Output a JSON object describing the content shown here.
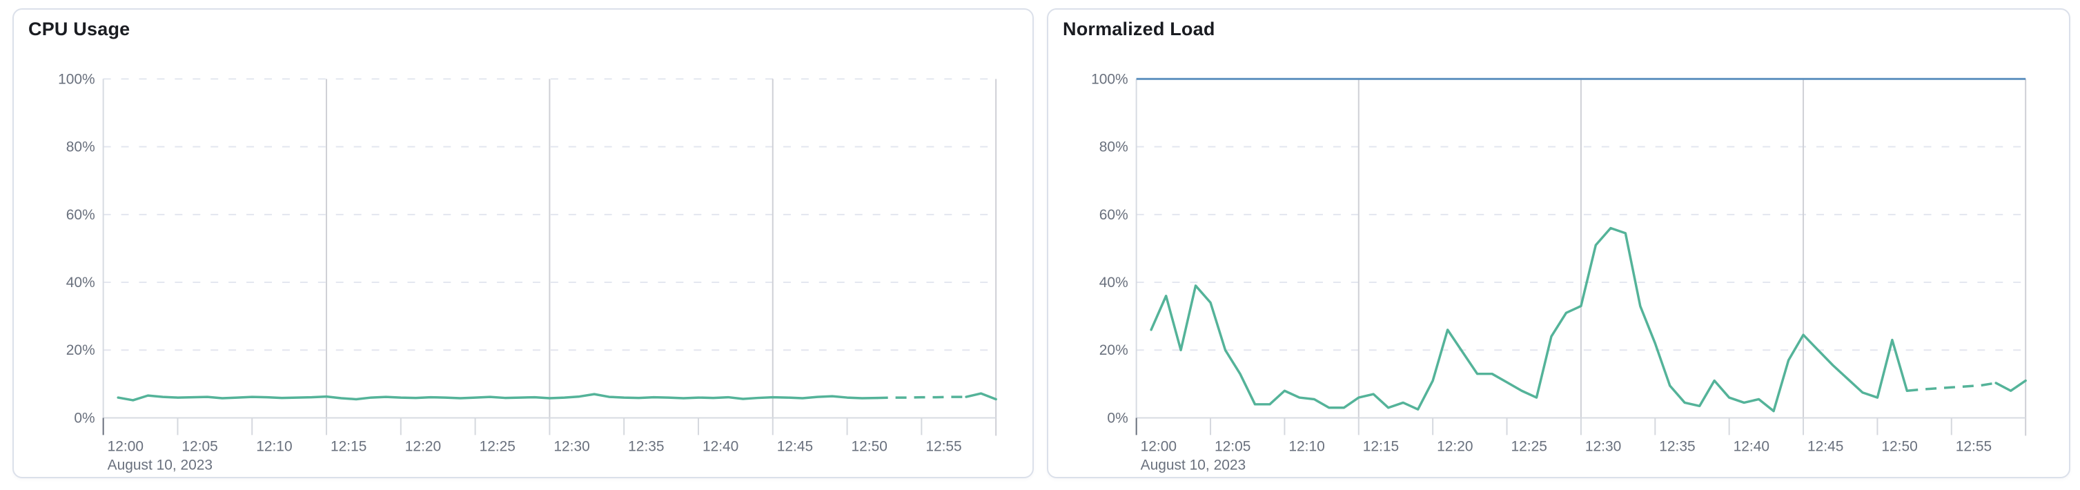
{
  "palette": {
    "series_green": "#54B399",
    "series_blue": "#6092C0",
    "h_grid_dashed": "#E3E6EF",
    "v_grid_solid": "#CFD0D6",
    "axis_line": "#D7DBE2",
    "minor_tick": "#D5D8DE",
    "origin_tick": "#69707D",
    "tick_text": "#69707D",
    "title_text": "#1A1C21",
    "card_border": "#DBE0EA"
  },
  "chart_data": [
    {
      "type": "line",
      "title": "CPU Usage",
      "date_label": "August 10, 2023",
      "x_unit": "time (minutes after 12:00)",
      "x_range": [
        0,
        60
      ],
      "ylim": [
        0,
        100
      ],
      "y_tick_labels": [
        "0%",
        "20%",
        "40%",
        "60%",
        "80%",
        "100%"
      ],
      "y_tick_values": [
        0,
        20,
        40,
        60,
        80,
        100
      ],
      "x_tick_labels": [
        "12:00",
        "12:05",
        "12:10",
        "12:15",
        "12:20",
        "12:25",
        "12:30",
        "12:35",
        "12:40",
        "12:45",
        "12:50",
        "12:55"
      ],
      "x_tick_minutes": [
        0,
        5,
        10,
        15,
        20,
        25,
        30,
        35,
        40,
        45,
        50,
        55
      ],
      "vertical_gridline_minutes": [
        15,
        30,
        45,
        60
      ],
      "grid": "horizontal-dashed, vertical-solid-15min",
      "legend": "none",
      "series": [
        {
          "name": "cpu-usage-percent",
          "color": "#54B399",
          "style": "solid with dashed projection segment",
          "dashed_segment_minutes": [
            52,
            58
          ],
          "x_minutes_start": 1,
          "values": [
            6.0,
            5.2,
            6.6,
            6.2,
            6.0,
            6.1,
            6.2,
            5.8,
            6.0,
            6.2,
            6.1,
            5.9,
            6.0,
            6.1,
            6.3,
            5.8,
            5.5,
            6.0,
            6.2,
            6.0,
            5.9,
            6.1,
            6.0,
            5.8,
            6.0,
            6.2,
            5.9,
            6.0,
            6.1,
            5.8,
            6.0,
            6.3,
            7.0,
            6.2,
            6.0,
            5.9,
            6.1,
            6.0,
            5.8,
            6.0,
            5.9,
            6.1,
            5.6,
            5.9,
            6.1,
            6.0,
            5.8,
            6.2,
            6.4,
            6.0,
            5.8,
            5.9,
            6.0,
            6.0,
            6.1,
            6.1,
            6.2,
            6.2,
            7.2,
            5.5
          ]
        }
      ]
    },
    {
      "type": "line",
      "title": "Normalized Load",
      "date_label": "August 10, 2023",
      "x_unit": "time (minutes after 12:00)",
      "x_range": [
        0,
        60
      ],
      "ylim": [
        0,
        100
      ],
      "y_tick_labels": [
        "0%",
        "20%",
        "40%",
        "60%",
        "80%",
        "100%"
      ],
      "y_tick_values": [
        0,
        20,
        40,
        60,
        80,
        100
      ],
      "x_tick_labels": [
        "12:00",
        "12:05",
        "12:10",
        "12:15",
        "12:20",
        "12:25",
        "12:30",
        "12:35",
        "12:40",
        "12:45",
        "12:50",
        "12:55"
      ],
      "x_tick_minutes": [
        0,
        5,
        10,
        15,
        20,
        25,
        30,
        35,
        40,
        45,
        50,
        55
      ],
      "vertical_gridline_minutes": [
        15,
        30,
        45,
        60
      ],
      "grid": "horizontal-dashed, vertical-solid-15min",
      "legend": "none",
      "series": [
        {
          "name": "limit-100-percent",
          "color": "#6092C0",
          "style": "solid horizontal line",
          "constant": 100
        },
        {
          "name": "normalized-load-percent",
          "color": "#54B399",
          "style": "solid with dashed projection segment",
          "dashed_segment_minutes": [
            52,
            58
          ],
          "x_minutes_start": 1,
          "values": [
            26,
            36,
            20,
            39,
            34,
            20,
            13,
            4,
            4,
            8,
            6,
            5.5,
            3,
            3,
            6,
            7,
            3,
            4.5,
            2.5,
            11,
            26,
            19.5,
            13,
            13,
            10.5,
            8,
            6,
            24,
            31,
            33,
            51,
            56,
            54.5,
            33,
            22,
            9.5,
            4.5,
            3.5,
            11,
            6,
            4.5,
            5.5,
            2,
            17,
            24.5,
            20,
            15.5,
            11.5,
            7.5,
            6,
            23,
            8,
            8.4,
            8.7,
            9,
            9.3,
            9.6,
            10.3,
            8,
            11
          ]
        }
      ]
    }
  ]
}
